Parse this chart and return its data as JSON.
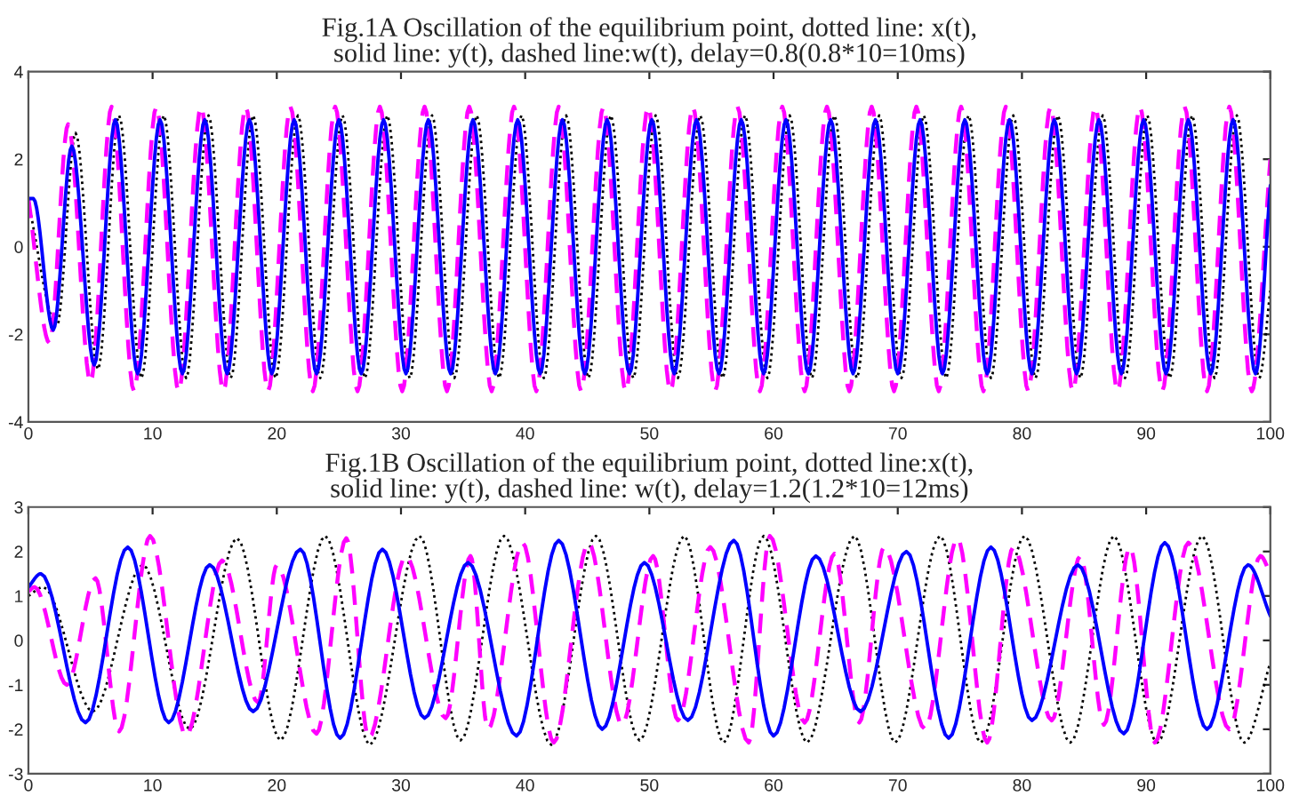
{
  "chart_data": [
    {
      "type": "line",
      "title": "Fig.1A Oscillation of the equilibrium point, dotted line: x(t),\nsolid line: y(t), dashed line:w(t), delay=0.8(0.8*10=10ms)",
      "xlim": [
        0,
        100
      ],
      "xticks": [
        0,
        10,
        20,
        30,
        40,
        50,
        60,
        70,
        80,
        90,
        100
      ],
      "ylim": [
        -4,
        4
      ],
      "yticks": [
        -4,
        -2,
        0,
        2,
        4
      ],
      "grid": false,
      "legend": false,
      "series": [
        {
          "color": "#000000",
          "line_style": "dotted",
          "x": [
            0,
            2.3,
            3.8,
            5.6,
            7.3,
            9.1,
            10.9,
            12.7,
            14.5,
            16.3,
            18.1,
            19.9,
            21.7,
            23.5,
            25.3,
            27.1,
            28.9,
            30.7,
            32.5,
            34.3,
            36.1,
            37.9,
            39.7,
            41.5,
            43.3,
            45.1,
            46.9,
            48.7,
            50.5,
            52.3,
            54.1,
            55.9,
            57.7,
            59.5,
            61.3,
            63.1,
            64.9,
            66.7,
            68.5,
            70.3,
            72.1,
            73.9,
            75.7,
            77.5,
            79.3,
            81.1,
            82.9,
            84.7,
            86.5,
            88.3,
            90.1,
            91.9,
            93.7,
            95.5,
            97.3,
            99.1,
            100
          ],
          "values": [
            1.0,
            -1.8,
            2.6,
            -2.8,
            3.0,
            -3.0,
            3.0,
            -3.0,
            3.0,
            -3.0,
            3.0,
            -3.0,
            3.0,
            -3.0,
            3.0,
            -3.0,
            3.0,
            -3.0,
            3.0,
            -3.0,
            3.0,
            -3.0,
            3.0,
            -3.0,
            3.0,
            -3.0,
            3.0,
            -3.0,
            3.0,
            -3.0,
            3.0,
            -3.0,
            3.0,
            -3.0,
            3.0,
            -3.0,
            3.0,
            -3.0,
            3.0,
            -3.0,
            3.0,
            -3.0,
            3.0,
            -3.0,
            3.0,
            -3.0,
            3.0,
            -3.0,
            3.0,
            -3.0,
            3.0,
            -3.0,
            3.0,
            -3.0,
            3.0,
            -3.0,
            -1.0
          ]
        },
        {
          "color": "#ff00ff",
          "line_style": "dashed",
          "x": [
            0,
            1.7,
            3.2,
            5.0,
            6.7,
            8.5,
            10.3,
            12.1,
            13.9,
            15.7,
            17.5,
            19.3,
            21.1,
            22.9,
            24.7,
            26.5,
            28.3,
            30.1,
            31.9,
            33.7,
            35.5,
            37.3,
            39.1,
            40.9,
            42.7,
            44.5,
            46.3,
            48.1,
            49.9,
            51.7,
            53.5,
            55.3,
            57.1,
            58.9,
            60.7,
            62.5,
            64.3,
            66.1,
            67.9,
            69.7,
            71.5,
            73.3,
            75.1,
            76.9,
            78.7,
            80.5,
            82.3,
            84.1,
            85.9,
            87.7,
            89.5,
            91.3,
            93.1,
            94.9,
            96.7,
            98.5,
            100
          ],
          "values": [
            1.1,
            -2.2,
            2.8,
            -3.1,
            3.2,
            -3.3,
            3.2,
            -3.3,
            3.2,
            -3.3,
            3.2,
            -3.3,
            3.2,
            -3.3,
            3.2,
            -3.3,
            3.2,
            -3.3,
            3.2,
            -3.3,
            3.2,
            -3.3,
            3.2,
            -3.3,
            3.2,
            -3.3,
            3.2,
            -3.3,
            3.2,
            -3.3,
            3.2,
            -3.3,
            3.2,
            -3.3,
            3.2,
            -3.3,
            3.2,
            -3.3,
            3.2,
            -3.3,
            3.2,
            -3.3,
            3.2,
            -3.3,
            3.2,
            -3.3,
            3.2,
            -3.3,
            3.2,
            -3.3,
            3.2,
            -3.3,
            3.2,
            -3.3,
            3.2,
            -3.3,
            2.0
          ]
        },
        {
          "color": "#0000ff",
          "line_style": "solid",
          "x": [
            0,
            0.4,
            2.0,
            3.5,
            5.3,
            7.0,
            8.8,
            10.6,
            12.4,
            14.2,
            16.0,
            17.8,
            19.6,
            21.4,
            23.2,
            25.0,
            26.8,
            28.6,
            30.4,
            32.2,
            34.0,
            35.8,
            37.6,
            39.4,
            41.2,
            43.0,
            44.8,
            46.6,
            48.4,
            50.2,
            52.0,
            53.8,
            55.6,
            57.4,
            59.2,
            61.0,
            62.8,
            64.6,
            66.4,
            68.2,
            70.0,
            71.8,
            73.6,
            75.4,
            77.2,
            79.0,
            80.8,
            82.6,
            84.4,
            86.2,
            88.0,
            89.8,
            91.6,
            93.4,
            95.2,
            97.0,
            98.8,
            100
          ],
          "values": [
            1.1,
            1.1,
            -1.9,
            2.3,
            -2.7,
            2.9,
            -2.9,
            2.9,
            -2.9,
            2.9,
            -2.9,
            2.9,
            -2.9,
            2.9,
            -2.9,
            2.9,
            -2.9,
            2.9,
            -2.9,
            2.9,
            -2.9,
            2.9,
            -2.9,
            2.9,
            -2.9,
            2.9,
            -2.9,
            2.9,
            -2.9,
            2.9,
            -2.9,
            2.9,
            -2.9,
            2.9,
            -2.9,
            2.9,
            -2.9,
            2.9,
            -2.9,
            2.9,
            -2.9,
            2.9,
            -2.9,
            2.9,
            -2.9,
            2.9,
            -2.9,
            2.9,
            -2.9,
            2.9,
            -2.9,
            2.9,
            -2.9,
            2.9,
            -2.9,
            2.9,
            -2.9,
            1.4
          ]
        }
      ]
    },
    {
      "type": "line",
      "title": "Fig.1B Oscillation of the equilibrium point, dotted line:x(t),\nsolid line: y(t), dashed line: w(t), delay=1.2(1.2*10=12ms)",
      "xlim": [
        0,
        100
      ],
      "xticks": [
        0,
        10,
        20,
        30,
        40,
        50,
        60,
        70,
        80,
        90,
        100
      ],
      "ylim": [
        -3,
        3
      ],
      "yticks": [
        -3,
        -2,
        -1,
        0,
        1,
        2,
        3
      ],
      "grid": false,
      "legend": false,
      "series": [
        {
          "color": "#000000",
          "line_style": "dotted",
          "x": [
            0,
            1.2,
            5.2,
            9.2,
            13.0,
            16.8,
            20.3,
            23.9,
            27.5,
            31.5,
            34.8,
            38.3,
            42.1,
            45.7,
            49.2,
            52.8,
            56.0,
            59.2,
            62.7,
            66.5,
            69.8,
            73.4,
            76.7,
            80.2,
            83.9,
            87.4,
            90.9,
            94.5,
            97.9,
            100
          ],
          "values": [
            1.0,
            1.2,
            -1.6,
            1.7,
            -2.0,
            2.3,
            -2.25,
            2.35,
            -2.35,
            2.35,
            -2.25,
            2.35,
            -2.35,
            2.35,
            -2.25,
            2.35,
            -2.3,
            2.35,
            -2.3,
            2.35,
            -2.3,
            2.35,
            -2.3,
            2.35,
            -2.3,
            2.35,
            -2.3,
            2.35,
            -2.3,
            -0.5
          ]
        },
        {
          "color": "#ff00ff",
          "line_style": "dashed",
          "x": [
            0,
            0.5,
            3.1,
            5.4,
            7.3,
            9.8,
            12.7,
            15.6,
            18.5,
            20.0,
            23.2,
            25.6,
            27.4,
            30.4,
            33.6,
            35.6,
            37.0,
            39.8,
            42.3,
            45.1,
            47.8,
            50.3,
            52.3,
            54.9,
            58.0,
            59.7,
            62.5,
            64.9,
            66.9,
            68.9,
            72.2,
            74.8,
            77.2,
            79.3,
            82.4,
            84.7,
            86.6,
            88.7,
            90.7,
            93.4,
            96.7,
            99.2,
            100
          ],
          "values": [
            1.1,
            1.2,
            -1.0,
            1.4,
            -2.05,
            2.35,
            -2.15,
            1.8,
            -1.4,
            1.7,
            -2.1,
            2.3,
            -2.2,
            1.9,
            -1.75,
            1.9,
            -2.0,
            2.2,
            -2.3,
            2.2,
            -1.9,
            1.9,
            -1.8,
            2.1,
            -2.3,
            2.35,
            -1.85,
            1.95,
            -1.85,
            2.1,
            -2.0,
            2.3,
            -2.3,
            2.1,
            -1.8,
            1.9,
            -1.9,
            2.1,
            -2.3,
            2.2,
            -2.0,
            1.9,
            1.5
          ]
        },
        {
          "color": "#0000ff",
          "line_style": "solid",
          "x": [
            0,
            1.0,
            4.6,
            8.0,
            11.3,
            14.6,
            18.1,
            21.9,
            25.1,
            28.5,
            31.9,
            35.4,
            39.3,
            42.7,
            46.2,
            49.6,
            53.1,
            56.8,
            60.0,
            63.4,
            67.0,
            70.7,
            74.1,
            77.5,
            80.8,
            84.5,
            88.2,
            91.5,
            94.9,
            98.2,
            100
          ],
          "values": [
            1.2,
            1.5,
            -1.85,
            2.1,
            -1.85,
            1.7,
            -1.6,
            2.05,
            -2.2,
            2.05,
            -1.75,
            1.75,
            -2.15,
            2.25,
            -2.0,
            1.75,
            -1.8,
            2.25,
            -2.15,
            1.9,
            -1.6,
            2.0,
            -2.2,
            2.1,
            -1.8,
            1.7,
            -2.1,
            2.2,
            -2.0,
            1.7,
            0.55
          ]
        }
      ]
    }
  ]
}
